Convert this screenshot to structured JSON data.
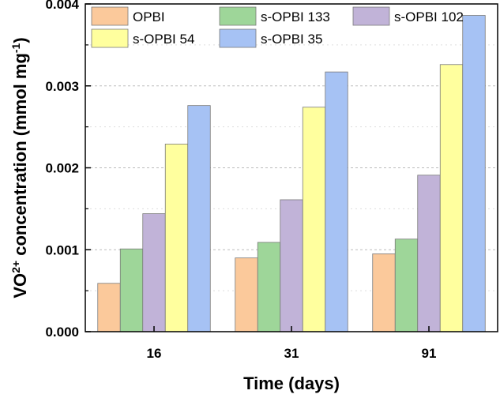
{
  "chart_data": {
    "type": "bar",
    "title": "",
    "xlabel": "Time (days)",
    "ylabel_parts": {
      "base": "VO",
      "sup": "2+",
      "mid": " concentration (mmol mg",
      "sup2": "-1",
      "end": ")"
    },
    "categories": [
      "16",
      "31",
      "91"
    ],
    "ylim": [
      0,
      0.004
    ],
    "yticks": [
      "0.000",
      "0.001",
      "0.002",
      "0.003",
      "0.004"
    ],
    "ytick_values": [
      0,
      0.001,
      0.002,
      0.003,
      0.004
    ],
    "grid": true,
    "legend_position": "top-left",
    "series": [
      {
        "name": "OPBI",
        "color": "#fbc99b",
        "values": [
          0.00059,
          0.0009,
          0.00095
        ]
      },
      {
        "name": "s-OPBI 133",
        "color": "#9ed699",
        "values": [
          0.00101,
          0.00109,
          0.00113
        ]
      },
      {
        "name": "s-OPBI 102",
        "color": "#c1b3d8",
        "values": [
          0.00144,
          0.00161,
          0.00191
        ]
      },
      {
        "name": "s-OPBI 54",
        "color": "#ffff9e",
        "values": [
          0.00229,
          0.00274,
          0.00326
        ]
      },
      {
        "name": "s-OPBI 35",
        "color": "#a6c2f4",
        "values": [
          0.00276,
          0.00317,
          0.00386
        ]
      }
    ]
  }
}
